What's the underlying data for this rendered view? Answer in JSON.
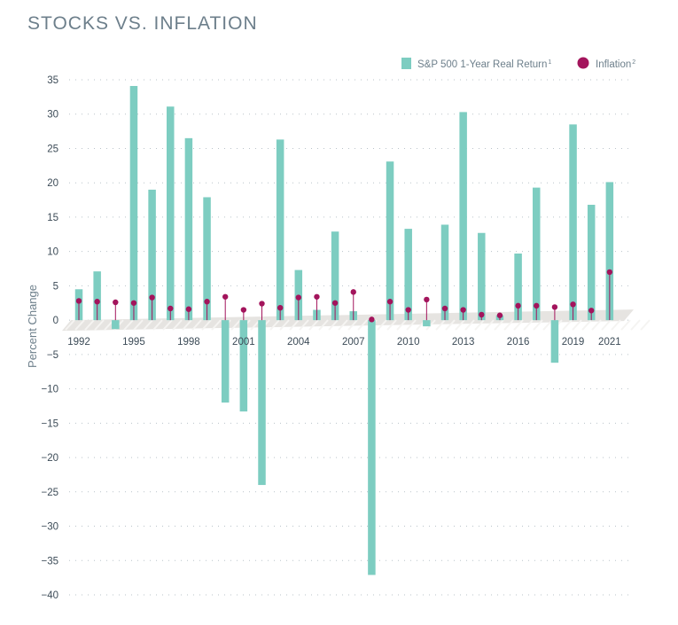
{
  "chart_data": {
    "type": "bar",
    "title": "STOCKS VS. INFLATION",
    "ylabel": "Percent Change",
    "xlabel": "",
    "ylim": [
      -40,
      35
    ],
    "yticks": [
      35,
      30,
      25,
      20,
      15,
      10,
      5,
      0,
      -5,
      -10,
      -15,
      -20,
      -25,
      -30,
      -35,
      -40
    ],
    "grid": true,
    "legend_position": "top-right",
    "categories": [
      1992,
      1993,
      1994,
      1995,
      1996,
      1997,
      1998,
      1999,
      2000,
      2001,
      2002,
      2003,
      2004,
      2005,
      2006,
      2007,
      2008,
      2009,
      2010,
      2011,
      2012,
      2013,
      2014,
      2015,
      2016,
      2017,
      2018,
      2019,
      2020,
      2021
    ],
    "year_labels": [
      "1992",
      "1995",
      "1998",
      "2001",
      "2004",
      "2007",
      "2010",
      "2013",
      "2016",
      "2019",
      "2021"
    ],
    "series": [
      {
        "name": "S&P 500 1-Year Real Return",
        "superscript": "1",
        "kind": "bar",
        "color": "#7dcdc1",
        "values": [
          4.5,
          7.1,
          -1.3,
          34.1,
          19.0,
          31.1,
          26.5,
          17.9,
          -12.0,
          -13.3,
          -24.0,
          26.3,
          7.3,
          1.5,
          12.9,
          1.3,
          -37.1,
          23.1,
          13.3,
          -0.9,
          13.9,
          30.3,
          12.7,
          0.7,
          9.7,
          19.3,
          -6.2,
          28.5,
          16.8,
          20.1
        ]
      },
      {
        "name": "Inflation",
        "superscript": "2",
        "kind": "lollipop",
        "color": "#a3145c",
        "values": [
          2.8,
          2.7,
          2.6,
          2.5,
          3.3,
          1.7,
          1.6,
          2.7,
          3.4,
          1.5,
          2.4,
          1.8,
          3.3,
          3.4,
          2.5,
          4.1,
          0.1,
          2.7,
          1.5,
          3.0,
          1.7,
          1.5,
          0.8,
          0.7,
          2.1,
          2.1,
          1.9,
          2.3,
          1.4,
          7.0
        ]
      }
    ]
  }
}
